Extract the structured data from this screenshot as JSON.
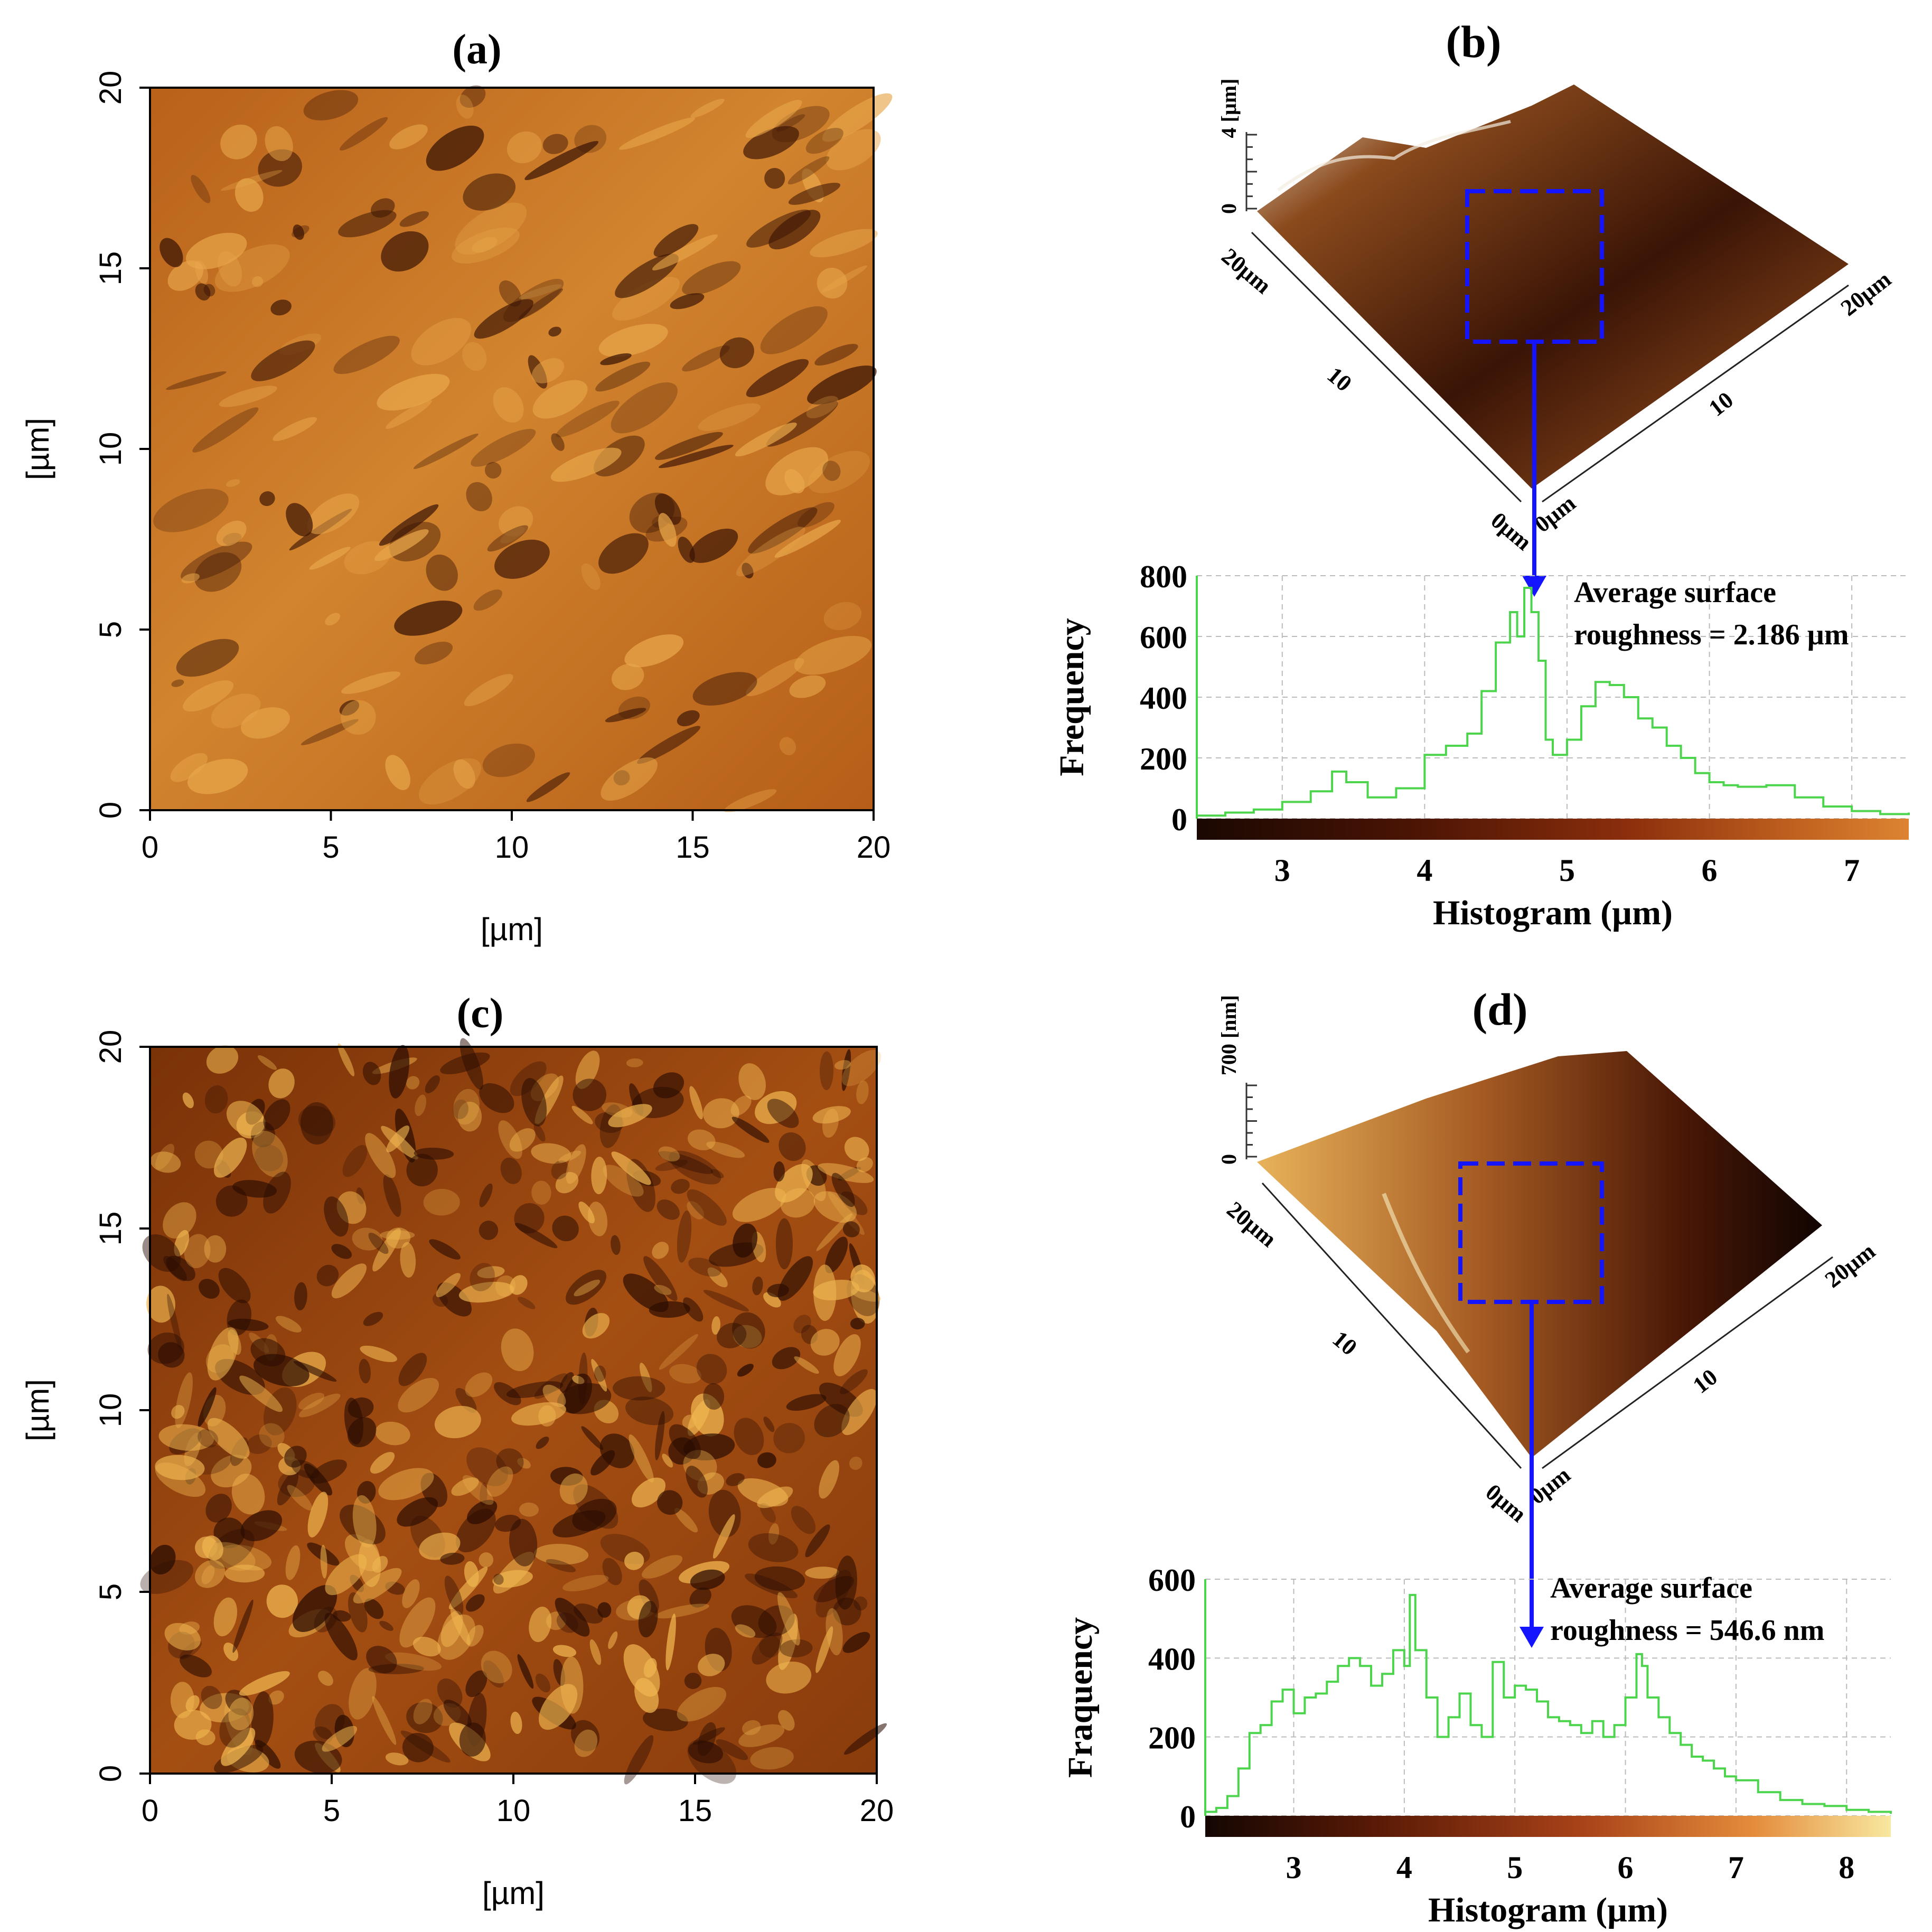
{
  "panels": {
    "a": {
      "label": "(a)",
      "x_label": "[µm]",
      "y_label": "[µm]",
      "x_ticks": [
        "0",
        "5",
        "10",
        "15",
        "20"
      ],
      "y_ticks": [
        "0",
        "5",
        "10",
        "15",
        "20"
      ],
      "colors": {
        "base": "#c8731d",
        "dark": "#3a1404",
        "light": "#e8a64a"
      }
    },
    "b": {
      "label": "(b)",
      "z_axis_label": "4 [µm]",
      "z_zero": "0",
      "axis_left_end": "20µm",
      "axis_left_mid": "10",
      "axis_right_end": "20µm",
      "axis_right_mid": "10",
      "origin_left": "0µm",
      "origin_right": "0µm"
    },
    "c": {
      "label": "(c)",
      "x_label": "[µm]",
      "y_label": "[µm]",
      "x_ticks": [
        "0",
        "5",
        "10",
        "15",
        "20"
      ],
      "y_ticks": [
        "0",
        "5",
        "10",
        "15",
        "20"
      ],
      "colors": {
        "base": "#9c4a0e",
        "dark": "#2a0c02",
        "light": "#f0b650"
      }
    },
    "d": {
      "label": "(d)",
      "z_axis_label": "700 [nm]",
      "z_zero": "0",
      "axis_left_end": "20µm",
      "axis_left_mid": "10",
      "axis_right_end": "20µm",
      "axis_right_mid": "10",
      "origin_left": "0µm",
      "origin_right": "0µm"
    }
  },
  "chart_data": [
    {
      "type": "line",
      "panel": "b",
      "title": "",
      "annotation_line1": "Average surface",
      "annotation_line2": "roughness = 2.186 µm",
      "xlabel": "Histogram (µm)",
      "ylabel": "Frequency",
      "xlim": [
        2.4,
        7.4
      ],
      "ylim": [
        0,
        800
      ],
      "x_ticks": [
        3,
        4,
        5,
        6,
        7
      ],
      "y_ticks": [
        0,
        200,
        400,
        600,
        800
      ],
      "series_color": "#4cd44c",
      "colorbar": [
        "#1a0802",
        "#4a1404",
        "#8a2e0c",
        "#c26320",
        "#dc8432"
      ],
      "x": [
        2.4,
        2.6,
        2.8,
        3.0,
        3.2,
        3.35,
        3.45,
        3.6,
        3.8,
        4.0,
        4.15,
        4.3,
        4.4,
        4.5,
        4.6,
        4.65,
        4.7,
        4.75,
        4.8,
        4.85,
        4.9,
        5.0,
        5.1,
        5.2,
        5.3,
        5.4,
        5.5,
        5.6,
        5.7,
        5.8,
        5.9,
        6.0,
        6.1,
        6.2,
        6.4,
        6.6,
        6.8,
        7.0,
        7.2,
        7.4
      ],
      "y": [
        10,
        20,
        30,
        55,
        90,
        155,
        120,
        70,
        100,
        210,
        240,
        280,
        420,
        580,
        680,
        600,
        760,
        680,
        520,
        260,
        210,
        260,
        370,
        450,
        440,
        400,
        330,
        300,
        240,
        200,
        150,
        120,
        110,
        105,
        110,
        70,
        40,
        25,
        15,
        20
      ]
    },
    {
      "type": "line",
      "panel": "d",
      "title": "",
      "annotation_line1": "Average surface",
      "annotation_line2": "roughness = 546.6 nm",
      "xlabel": "Histogram (µm)",
      "ylabel": "Fraquency",
      "xlim": [
        2.2,
        8.4
      ],
      "ylim": [
        0,
        600
      ],
      "x_ticks": [
        3,
        4,
        5,
        6,
        7,
        8
      ],
      "y_ticks": [
        0,
        200,
        400,
        600
      ],
      "series_color": "#4cd44c",
      "colorbar": [
        "#140602",
        "#5a1a06",
        "#a84218",
        "#e48c3c",
        "#f8e8a0"
      ],
      "x": [
        2.2,
        2.3,
        2.4,
        2.5,
        2.6,
        2.7,
        2.8,
        2.9,
        3.0,
        3.1,
        3.2,
        3.3,
        3.4,
        3.5,
        3.6,
        3.7,
        3.8,
        3.9,
        4.0,
        4.05,
        4.1,
        4.2,
        4.3,
        4.4,
        4.5,
        4.6,
        4.7,
        4.8,
        4.9,
        5.0,
        5.1,
        5.2,
        5.3,
        5.4,
        5.5,
        5.6,
        5.7,
        5.8,
        5.9,
        6.0,
        6.1,
        6.15,
        6.2,
        6.3,
        6.4,
        6.5,
        6.6,
        6.7,
        6.8,
        6.9,
        7.0,
        7.2,
        7.4,
        7.6,
        7.8,
        8.0,
        8.2,
        8.4
      ],
      "y": [
        10,
        20,
        50,
        120,
        210,
        230,
        290,
        320,
        260,
        300,
        310,
        340,
        380,
        400,
        380,
        330,
        360,
        420,
        380,
        560,
        420,
        300,
        200,
        250,
        310,
        230,
        200,
        390,
        300,
        330,
        320,
        290,
        250,
        240,
        230,
        210,
        240,
        200,
        230,
        300,
        410,
        380,
        300,
        250,
        210,
        180,
        150,
        140,
        120,
        100,
        90,
        60,
        40,
        30,
        25,
        15,
        10,
        5
      ]
    }
  ]
}
